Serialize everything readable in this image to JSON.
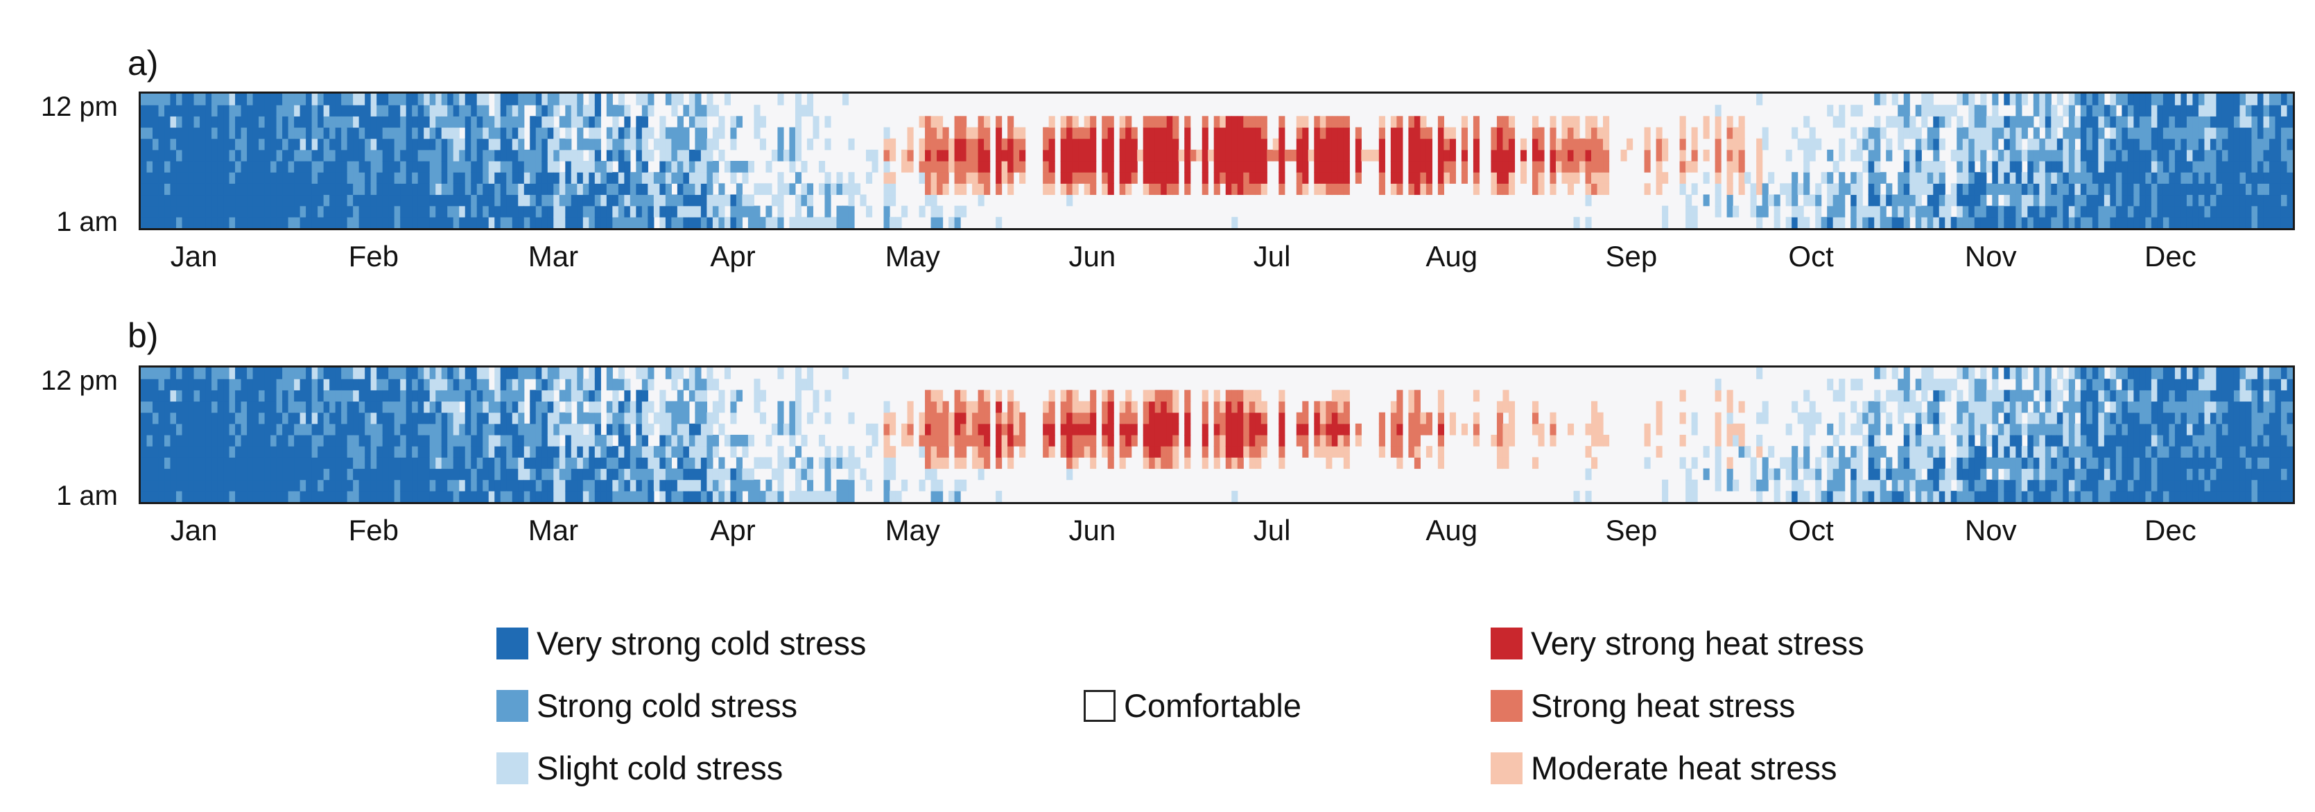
{
  "chart_data": [
    {
      "type": "heatmap",
      "panel_label": "a)",
      "ylabel_top": "12 pm",
      "ylabel_bottom": "1 am",
      "months": [
        "Jan",
        "Feb",
        "Mar",
        "Apr",
        "May",
        "Jun",
        "Jul",
        "Aug",
        "Sep",
        "Oct",
        "Nov",
        "Dec"
      ],
      "x_unit": "day of year",
      "y_unit": "hour of day",
      "x_range": [
        1,
        365
      ],
      "y_range": [
        1,
        12
      ],
      "categories": {
        "very_strong_cold": "Very strong cold stress",
        "strong_cold": "Strong cold stress",
        "slight_cold": "Slight cold stress",
        "comfortable": "Comfortable",
        "moderate_heat": "Moderate heat stress",
        "strong_heat": "Strong heat stress",
        "very_strong_heat": "Very strong heat stress"
      },
      "heat_stress_season": {
        "start": "May",
        "peak": "Jul",
        "end": "Oct",
        "peak_intensity": 1.0
      }
    },
    {
      "type": "heatmap",
      "panel_label": "b)",
      "ylabel_top": "12 pm",
      "ylabel_bottom": "1 am",
      "months": [
        "Jan",
        "Feb",
        "Mar",
        "Apr",
        "May",
        "Jun",
        "Jul",
        "Aug",
        "Sep",
        "Oct",
        "Nov",
        "Dec"
      ],
      "x_unit": "day of year",
      "y_unit": "hour of day",
      "x_range": [
        1,
        365
      ],
      "y_range": [
        1,
        12
      ],
      "heat_stress_season": {
        "start": "May",
        "peak": "Jun",
        "end": "Oct",
        "peak_intensity": 0.6
      }
    }
  ],
  "legend": {
    "items": [
      {
        "label": "Very strong cold stress",
        "color": "#1f6bb4",
        "column": "left",
        "row": 1
      },
      {
        "label": "Strong cold stress",
        "color": "#5e9fd0",
        "column": "left",
        "row": 2
      },
      {
        "label": "Slight cold stress",
        "color": "#c3ddf0",
        "column": "left",
        "row": 3
      },
      {
        "label": "Comfortable",
        "color": "#ffffff",
        "column": "middle",
        "row": 2
      },
      {
        "label": "Very strong heat stress",
        "color": "#c9272d",
        "column": "right",
        "row": 1
      },
      {
        "label": "Strong heat stress",
        "color": "#e27761",
        "column": "right",
        "row": 2
      },
      {
        "label": "Moderate heat stress",
        "color": "#f7c5ae",
        "column": "right",
        "row": 3
      }
    ]
  },
  "colors": {
    "very_strong_cold": "#1f6bb4",
    "strong_cold": "#5e9fd0",
    "slight_cold": "#c3ddf0",
    "comfortable": "#f6f6f8",
    "moderate_heat": "#f7c5ae",
    "strong_heat": "#e27761",
    "very_strong_heat": "#c9272d"
  }
}
